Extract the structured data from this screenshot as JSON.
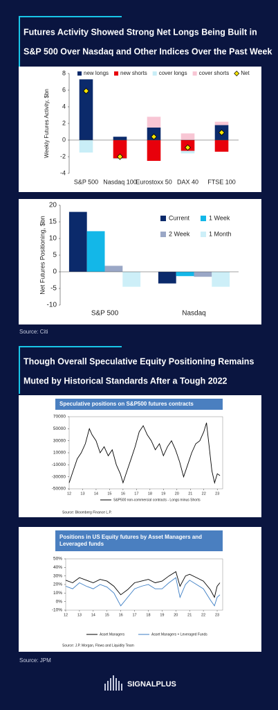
{
  "headings": [
    [
      "Futures Activity Showed Strong Net Longs Being Built in",
      "S&P 500 Over Nasdaq and Other Indices Over the Past Week"
    ],
    [
      "Though Overall Speculative Equity Positioning Remains",
      "Muted by Historical Standards After a Tough 2022"
    ]
  ],
  "sources": [
    "Source: Citi",
    "Source: JPM"
  ],
  "brand": "SIGNALPLUS",
  "chart_data": [
    {
      "type": "bar",
      "stacked": true,
      "y_label": "Weekly Futures Activity, $bn",
      "categories": [
        "S&P 500",
        "Nasdaq 100",
        "Eurostoxx 50",
        "DAX 40",
        "FTSE 100"
      ],
      "series": [
        {
          "name": "new longs",
          "color": "#0b2a6b",
          "values": [
            7.3,
            0.4,
            1.5,
            0,
            1.8
          ]
        },
        {
          "name": "new shorts",
          "color": "#e8000b",
          "values": [
            0,
            -2.2,
            -2.5,
            -1.3,
            -1.4
          ]
        },
        {
          "name": "cover longs",
          "color": "#c9eef7",
          "values": [
            -1.5,
            -0.1,
            0,
            -0.3,
            0
          ]
        },
        {
          "name": "cover shorts",
          "color": "#f8c6d4",
          "values": [
            0,
            0,
            1.3,
            0.8,
            0.4
          ]
        },
        {
          "name": "Net",
          "type": "scatter",
          "color": "#f5e400",
          "values": [
            5.9,
            -2.0,
            0.4,
            -0.9,
            0.9
          ]
        }
      ],
      "ylim": [
        -4,
        8
      ],
      "yticks": [
        -4,
        -2,
        0,
        2,
        4,
        6,
        8
      ],
      "grid": false
    },
    {
      "type": "bar",
      "stacked": false,
      "y_label": "Net Futures Positioning, $bn",
      "categories": [
        "S&P 500",
        "Nasdaq"
      ],
      "series": [
        {
          "name": "Current",
          "color": "#0b2a6b",
          "values": [
            18,
            -3.5
          ]
        },
        {
          "name": "1 Week",
          "color": "#13b7e8",
          "values": [
            12.2,
            -1.3
          ]
        },
        {
          "name": "2 Week",
          "color": "#9aa7c6",
          "values": [
            1.8,
            -1.5
          ]
        },
        {
          "name": "1 Month",
          "color": "#cdeff8",
          "values": [
            -4.5,
            -4.5
          ]
        }
      ],
      "ylim": [
        -10,
        20
      ],
      "yticks": [
        -10,
        -5,
        0,
        5,
        10,
        15,
        20
      ],
      "grid": false
    },
    {
      "type": "line",
      "title": "Speculative positions on S&P500 futures contracts",
      "source": "Source:   Bloomberg Finance L.P.",
      "x": [
        2012.0,
        2012.3,
        2012.6,
        2012.9,
        2013.2,
        2013.5,
        2013.7,
        2014.0,
        2014.3,
        2014.6,
        2014.9,
        2015.2,
        2015.5,
        2015.8,
        2016.0,
        2016.3,
        2016.6,
        2016.9,
        2017.2,
        2017.5,
        2017.8,
        2018.1,
        2018.4,
        2018.7,
        2019.0,
        2019.3,
        2019.6,
        2019.9,
        2020.2,
        2020.5,
        2020.8,
        2021.1,
        2021.4,
        2021.7,
        2022.0,
        2022.2,
        2022.4,
        2022.6,
        2022.8,
        2023.0,
        2023.2
      ],
      "series": [
        {
          "name": "S&P500 non-commercial contracts - Longs minus Shorts",
          "color": "#000000",
          "values": [
            -40000,
            -20000,
            0,
            10000,
            25000,
            50000,
            40000,
            30000,
            10000,
            20000,
            5000,
            15000,
            -10000,
            -25000,
            -40000,
            -20000,
            0,
            20000,
            45000,
            55000,
            40000,
            30000,
            15000,
            25000,
            5000,
            20000,
            30000,
            15000,
            -5000,
            -30000,
            -10000,
            10000,
            25000,
            30000,
            45000,
            60000,
            20000,
            -20000,
            -40000,
            -25000,
            -28000
          ]
        }
      ],
      "xlim": [
        2012,
        2023.4
      ],
      "xticks": [
        {
          "value": 2012,
          "label": "12"
        },
        {
          "value": 2013,
          "label": "13"
        },
        {
          "value": 2014,
          "label": "14"
        },
        {
          "value": 2015,
          "label": "15"
        },
        {
          "value": 2016,
          "label": "16"
        },
        {
          "value": 2017,
          "label": "17"
        },
        {
          "value": 2018,
          "label": "18"
        },
        {
          "value": 2019,
          "label": "19"
        },
        {
          "value": 2020,
          "label": "20"
        },
        {
          "value": 2021,
          "label": "21"
        },
        {
          "value": 2022,
          "label": "22"
        },
        {
          "value": 2023,
          "label": "23"
        }
      ],
      "ylim": [
        -50000,
        70000
      ],
      "yticks": [
        -50000,
        -30000,
        -10000,
        10000,
        30000,
        50000,
        70000
      ],
      "grid": false
    },
    {
      "type": "line",
      "title": "Positions in US Equity futures by Asset Managers and Leveraged funds",
      "source": "Source:   J.P. Morgan, Flows and Liquidity Team",
      "x": [
        2012,
        2012.5,
        2013,
        2013.5,
        2014,
        2014.5,
        2015,
        2015.5,
        2016,
        2016.5,
        2017,
        2017.5,
        2018,
        2018.5,
        2019,
        2019.5,
        2020,
        2020.3,
        2020.7,
        2021,
        2021.5,
        2022,
        2022.5,
        2022.8,
        2023,
        2023.2
      ],
      "series": [
        {
          "name": "Asset Managers",
          "color": "#000000",
          "values": [
            25,
            22,
            28,
            25,
            22,
            26,
            24,
            18,
            8,
            14,
            22,
            24,
            26,
            22,
            24,
            30,
            35,
            18,
            30,
            32,
            28,
            24,
            14,
            5,
            18,
            22
          ]
        },
        {
          "name": "Asset Managers + Leveraged Funds",
          "color": "#3b7dc4",
          "values": [
            18,
            15,
            22,
            18,
            15,
            20,
            17,
            10,
            -5,
            5,
            15,
            18,
            20,
            15,
            15,
            22,
            28,
            5,
            20,
            25,
            20,
            15,
            2,
            -5,
            5,
            8
          ]
        }
      ],
      "xlim": [
        2012,
        2023.4
      ],
      "xticks": [
        {
          "value": 2012,
          "label": "12"
        },
        {
          "value": 2013,
          "label": "13"
        },
        {
          "value": 2014,
          "label": "14"
        },
        {
          "value": 2015,
          "label": "15"
        },
        {
          "value": 2016,
          "label": "16"
        },
        {
          "value": 2017,
          "label": "17"
        },
        {
          "value": 2018,
          "label": "18"
        },
        {
          "value": 2019,
          "label": "19"
        },
        {
          "value": 2020,
          "label": "20"
        },
        {
          "value": 2021,
          "label": "21"
        },
        {
          "value": 2022,
          "label": "22"
        },
        {
          "value": 2023,
          "label": "23"
        }
      ],
      "ylim": [
        -10,
        50
      ],
      "yticks": [
        {
          "value": -10,
          "label": "-10%"
        },
        {
          "value": 0,
          "label": "0%"
        },
        {
          "value": 10,
          "label": "10%"
        },
        {
          "value": 20,
          "label": "20%"
        },
        {
          "value": 30,
          "label": "30%"
        },
        {
          "value": 40,
          "label": "40%"
        },
        {
          "value": 50,
          "label": "50%"
        }
      ],
      "grid": false
    }
  ]
}
